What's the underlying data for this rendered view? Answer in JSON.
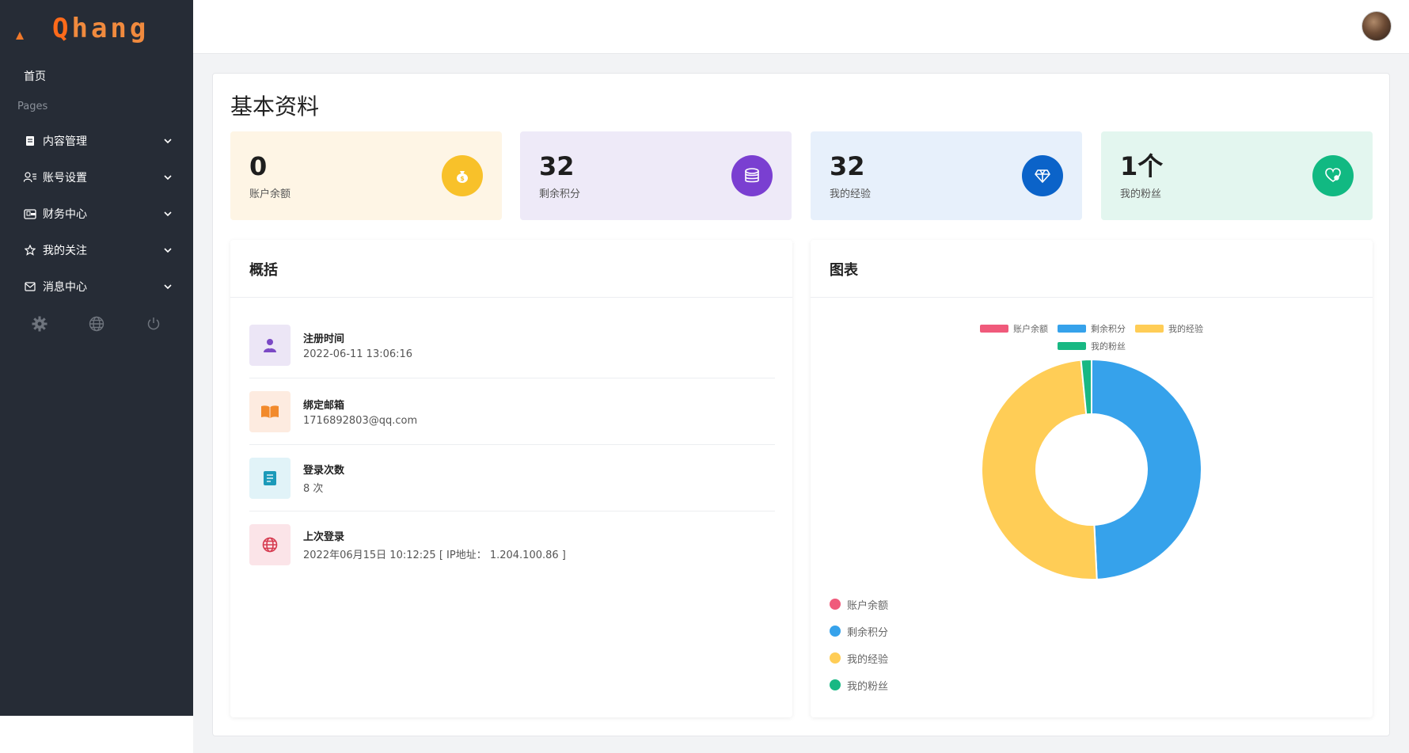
{
  "sidebar": {
    "logo": {
      "first": "Q",
      "rest": "hang"
    },
    "home": "首页",
    "section": "Pages",
    "items": [
      {
        "label": "内容管理",
        "icon": "document-icon"
      },
      {
        "label": "账号设置",
        "icon": "user-settings-icon"
      },
      {
        "label": "财务中心",
        "icon": "wallet-icon"
      },
      {
        "label": "我的关注",
        "icon": "star-icon"
      },
      {
        "label": "消息中心",
        "icon": "mail-icon"
      }
    ],
    "tools": [
      "gear-icon",
      "globe-icon",
      "power-icon"
    ]
  },
  "page": {
    "title": "基本资料"
  },
  "stats": [
    {
      "value": "0",
      "label": "账户余额",
      "bg": "#fef5e5",
      "color": "#f8c12a",
      "icon": "money-bag-icon"
    },
    {
      "value": "32",
      "label": "剩余积分",
      "bg": "#eeeaf8",
      "color": "#7a3fd1",
      "icon": "database-icon"
    },
    {
      "value": "32",
      "label": "我的经验",
      "bg": "#e7f0fb",
      "color": "#0b63c9",
      "icon": "diamond-icon"
    },
    {
      "value": "1个",
      "label": "我的粉丝",
      "bg": "#e3f6ef",
      "color": "#11b982",
      "icon": "heart-icon"
    }
  ],
  "overview": {
    "title": "概括",
    "rows": [
      {
        "title": "注册时间",
        "value": "2022-06-11 13:06:16",
        "icon": "user-icon",
        "bg": "#ece6f6",
        "color": "#7b49c5"
      },
      {
        "title": "绑定邮箱",
        "value": "1716892803@qq.com",
        "icon": "book-open-icon",
        "bg": "#fdebe0",
        "color": "#f28a2c"
      },
      {
        "title": "登录次数",
        "value": "8 次",
        "icon": "notebook-icon",
        "bg": "#e1f3f8",
        "color": "#1b9ab9"
      },
      {
        "title": "上次登录",
        "value": "2022年06月15日 10:12:25 [ IP地址：  1.204.100.86 ]",
        "icon": "globe-icon",
        "bg": "#fbe4e8",
        "color": "#d63a4f"
      }
    ]
  },
  "chart": {
    "title": "图表"
  },
  "chart_data": {
    "type": "pie",
    "donut": true,
    "categories": [
      "账户余额",
      "剩余积分",
      "我的经验",
      "我的粉丝"
    ],
    "values": [
      0,
      32,
      32,
      1
    ],
    "colors": [
      "#f05a7b",
      "#36a2eb",
      "#ffcd56",
      "#18b883"
    ],
    "legend": [
      "top",
      "left"
    ]
  }
}
